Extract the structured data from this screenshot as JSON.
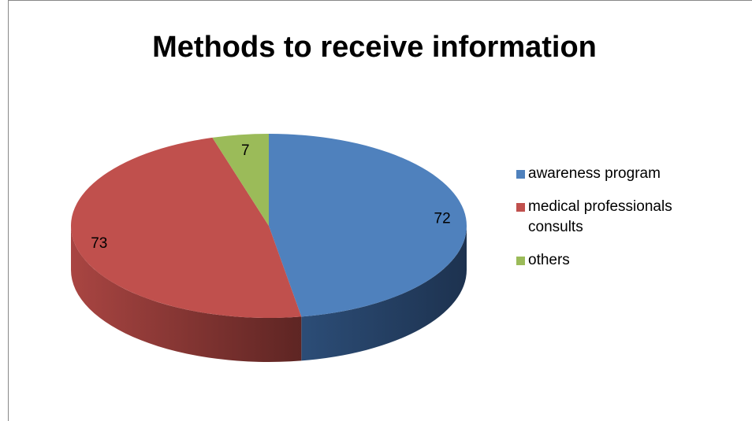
{
  "chart_data": {
    "type": "pie",
    "title": "Methods to receive information",
    "categories": [
      "awareness program",
      "medical professionals consults",
      "others"
    ],
    "values": [
      72,
      73,
      7
    ],
    "colors": [
      "#4f81bd",
      "#c0504d",
      "#9bbb59"
    ],
    "legend": "right"
  }
}
